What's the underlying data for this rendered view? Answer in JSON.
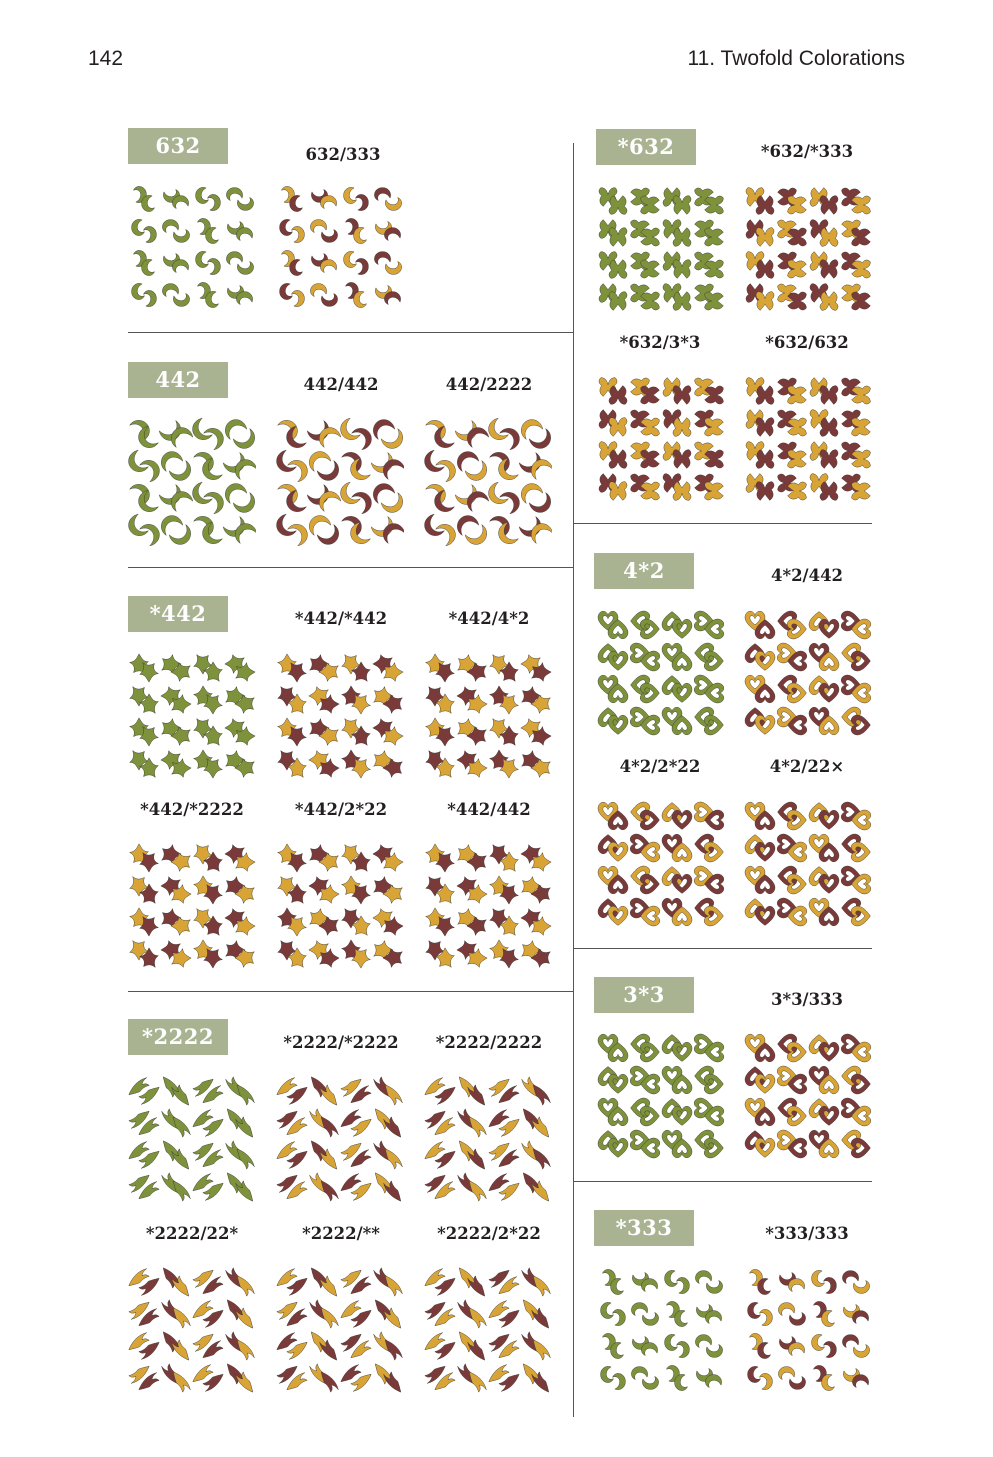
{
  "header": {
    "page_number": "142",
    "running_head": "11. Twofold Colorations"
  },
  "colors": {
    "olive": "#7d923a",
    "gold": "#d9a436",
    "maroon": "#7b3a3a",
    "label_bg": "#a9b392",
    "outline": "#3b3a35"
  },
  "groups": [
    {
      "label": "632",
      "items": [
        {
          "caption": "",
          "style": "swirl",
          "scheme": "mono"
        },
        {
          "caption": "632/333",
          "style": "swirl",
          "scheme": "A"
        }
      ]
    },
    {
      "label": "442",
      "items": [
        {
          "caption": "",
          "style": "comma",
          "scheme": "mono"
        },
        {
          "caption": "442/442",
          "style": "comma",
          "scheme": "A"
        },
        {
          "caption": "442/2222",
          "style": "comma",
          "scheme": "B"
        }
      ]
    },
    {
      "label": "*442",
      "items": [
        {
          "caption": "",
          "style": "cross",
          "scheme": "mono"
        },
        {
          "caption": "*442/*442",
          "style": "cross",
          "scheme": "A"
        },
        {
          "caption": "*442/4*2",
          "style": "cross",
          "scheme": "B"
        },
        {
          "caption": "*442/*2222",
          "style": "cross",
          "scheme": "C"
        },
        {
          "caption": "*442/2*22",
          "style": "cross",
          "scheme": "D"
        },
        {
          "caption": "*442/442",
          "style": "cross",
          "scheme": "E"
        }
      ]
    },
    {
      "label": "*2222",
      "items": [
        {
          "caption": "",
          "style": "fern",
          "scheme": "mono"
        },
        {
          "caption": "*2222/*2222",
          "style": "fern",
          "scheme": "A"
        },
        {
          "caption": "*2222/2222",
          "style": "fern",
          "scheme": "B"
        },
        {
          "caption": "*2222/22*",
          "style": "fern",
          "scheme": "C"
        },
        {
          "caption": "*2222/**",
          "style": "fern",
          "scheme": "D"
        },
        {
          "caption": "*2222/2*22",
          "style": "fern",
          "scheme": "E"
        }
      ]
    },
    {
      "label": "*632",
      "items": [
        {
          "caption": "",
          "style": "lace",
          "scheme": "mono"
        },
        {
          "caption": "*632/*333",
          "style": "lace",
          "scheme": "A"
        },
        {
          "caption": "*632/3*3",
          "style": "lace",
          "scheme": "B"
        },
        {
          "caption": "*632/632",
          "style": "lace",
          "scheme": "C"
        }
      ]
    },
    {
      "label": "4*2",
      "items": [
        {
          "caption": "",
          "style": "heart",
          "scheme": "mono"
        },
        {
          "caption": "4*2/442",
          "style": "heart",
          "scheme": "A"
        },
        {
          "caption": "4*2/2*22",
          "style": "heart",
          "scheme": "B"
        },
        {
          "caption": "4*2/22×",
          "style": "heart",
          "scheme": "C"
        }
      ]
    },
    {
      "label": "3*3",
      "items": [
        {
          "caption": "",
          "style": "heart",
          "scheme": "mono"
        },
        {
          "caption": "3*3/333",
          "style": "heart",
          "scheme": "A"
        }
      ]
    },
    {
      "label": "*333",
      "items": [
        {
          "caption": "",
          "style": "swirl",
          "scheme": "mono"
        },
        {
          "caption": "*333/333",
          "style": "swirl",
          "scheme": "A"
        }
      ]
    }
  ]
}
